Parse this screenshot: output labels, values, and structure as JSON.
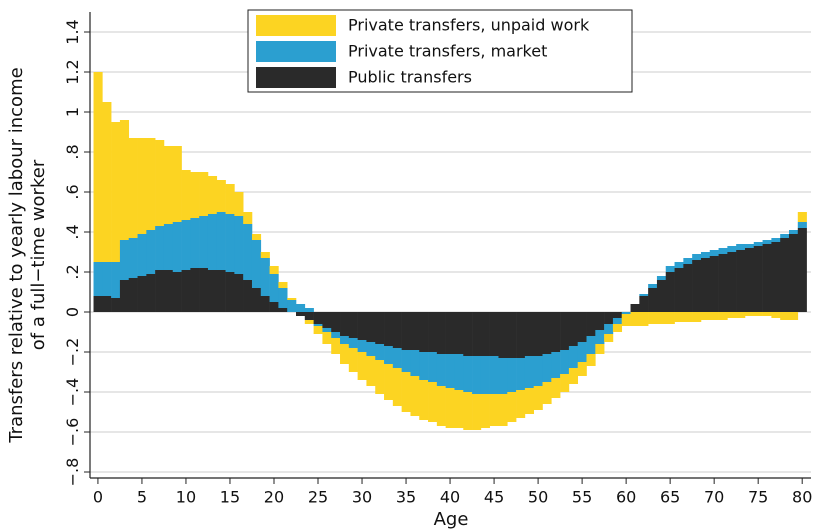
{
  "chart_data": {
    "type": "stacked_bar",
    "ylabel": [
      "Transfers relative to yearly labour income",
      "of a full−time worker"
    ],
    "xlabel": "Age",
    "x": [
      0,
      1,
      2,
      3,
      4,
      5,
      6,
      7,
      8,
      9,
      10,
      11,
      12,
      13,
      14,
      15,
      16,
      17,
      18,
      19,
      20,
      21,
      22,
      23,
      24,
      25,
      26,
      27,
      28,
      29,
      30,
      31,
      32,
      33,
      34,
      35,
      36,
      37,
      38,
      39,
      40,
      41,
      42,
      43,
      44,
      45,
      46,
      47,
      48,
      49,
      50,
      51,
      52,
      53,
      54,
      55,
      56,
      57,
      58,
      59,
      60,
      61,
      62,
      63,
      64,
      65,
      66,
      67,
      68,
      69,
      70,
      71,
      72,
      73,
      74,
      75,
      76,
      77,
      78,
      79,
      80
    ],
    "xlim": [
      -0.9,
      81
    ],
    "xticks": [
      0,
      5,
      10,
      15,
      20,
      25,
      30,
      35,
      40,
      45,
      50,
      55,
      60,
      65,
      70,
      75,
      80
    ],
    "ylim": [
      -0.83,
      1.5
    ],
    "yticks": [
      {
        "value": -0.8,
        "label": "−.8"
      },
      {
        "value": -0.6,
        "label": "−.6"
      },
      {
        "value": -0.4,
        "label": "−.4"
      },
      {
        "value": -0.2,
        "label": "−.2"
      },
      0,
      {
        "value": 0.2,
        "label": ".2"
      },
      {
        "value": 0.4,
        "label": ".4"
      },
      {
        "value": 0.6,
        "label": ".6"
      },
      {
        "value": 0.8,
        "label": ".8"
      },
      1,
      {
        "value": 1.2,
        "label": "1.2"
      },
      {
        "value": 1.4,
        "label": "1.4"
      }
    ],
    "grid": true,
    "legend": "top",
    "series": [
      {
        "name": "Public transfers",
        "color": "#2a2a2a",
        "values": [
          0.08,
          0.08,
          0.07,
          0.16,
          0.17,
          0.18,
          0.19,
          0.21,
          0.21,
          0.2,
          0.21,
          0.22,
          0.22,
          0.21,
          0.21,
          0.2,
          0.19,
          0.16,
          0.12,
          0.08,
          0.05,
          0.02,
          0.0,
          -0.02,
          -0.04,
          -0.06,
          -0.08,
          -0.1,
          -0.12,
          -0.13,
          -0.14,
          -0.15,
          -0.16,
          -0.17,
          -0.18,
          -0.19,
          -0.19,
          -0.2,
          -0.2,
          -0.21,
          -0.21,
          -0.21,
          -0.22,
          -0.22,
          -0.22,
          -0.22,
          -0.23,
          -0.23,
          -0.23,
          -0.22,
          -0.22,
          -0.21,
          -0.2,
          -0.19,
          -0.17,
          -0.15,
          -0.12,
          -0.09,
          -0.06,
          -0.03,
          0.0,
          0.04,
          0.08,
          0.12,
          0.16,
          0.2,
          0.22,
          0.24,
          0.26,
          0.27,
          0.28,
          0.29,
          0.3,
          0.31,
          0.32,
          0.33,
          0.34,
          0.35,
          0.37,
          0.39,
          0.42
        ]
      },
      {
        "name": "Private transfers, market",
        "color": "#2b9fd0",
        "values": [
          0.17,
          0.17,
          0.18,
          0.2,
          0.2,
          0.21,
          0.22,
          0.22,
          0.23,
          0.25,
          0.25,
          0.25,
          0.26,
          0.28,
          0.29,
          0.29,
          0.29,
          0.28,
          0.24,
          0.19,
          0.14,
          0.1,
          0.06,
          0.04,
          0.02,
          -0.01,
          -0.02,
          -0.03,
          -0.04,
          -0.05,
          -0.06,
          -0.07,
          -0.08,
          -0.09,
          -0.1,
          -0.11,
          -0.13,
          -0.14,
          -0.15,
          -0.16,
          -0.17,
          -0.18,
          -0.18,
          -0.19,
          -0.19,
          -0.19,
          -0.18,
          -0.17,
          -0.16,
          -0.16,
          -0.15,
          -0.14,
          -0.13,
          -0.12,
          -0.11,
          -0.1,
          -0.09,
          -0.07,
          -0.05,
          -0.03,
          -0.01,
          0.0,
          0.01,
          0.02,
          0.02,
          0.03,
          0.03,
          0.03,
          0.03,
          0.03,
          0.03,
          0.03,
          0.03,
          0.03,
          0.02,
          0.02,
          0.02,
          0.02,
          0.02,
          0.02,
          0.03
        ]
      },
      {
        "name": "Private transfers, unpaid work",
        "color": "#fcd422",
        "values": [
          0.95,
          0.8,
          0.7,
          0.6,
          0.5,
          0.48,
          0.46,
          0.43,
          0.39,
          0.38,
          0.25,
          0.23,
          0.22,
          0.19,
          0.16,
          0.15,
          0.12,
          0.06,
          0.03,
          0.03,
          0.04,
          0.03,
          0.01,
          0.0,
          -0.02,
          -0.04,
          -0.06,
          -0.08,
          -0.1,
          -0.12,
          -0.14,
          -0.15,
          -0.17,
          -0.18,
          -0.19,
          -0.2,
          -0.2,
          -0.2,
          -0.2,
          -0.2,
          -0.2,
          -0.19,
          -0.19,
          -0.18,
          -0.17,
          -0.16,
          -0.16,
          -0.15,
          -0.14,
          -0.13,
          -0.12,
          -0.11,
          -0.1,
          -0.09,
          -0.08,
          -0.07,
          -0.06,
          -0.05,
          -0.04,
          -0.04,
          -0.06,
          -0.07,
          -0.07,
          -0.06,
          -0.06,
          -0.06,
          -0.05,
          -0.05,
          -0.05,
          -0.04,
          -0.04,
          -0.04,
          -0.03,
          -0.03,
          -0.02,
          -0.02,
          -0.02,
          -0.03,
          -0.04,
          -0.04,
          0.05
        ]
      }
    ]
  }
}
